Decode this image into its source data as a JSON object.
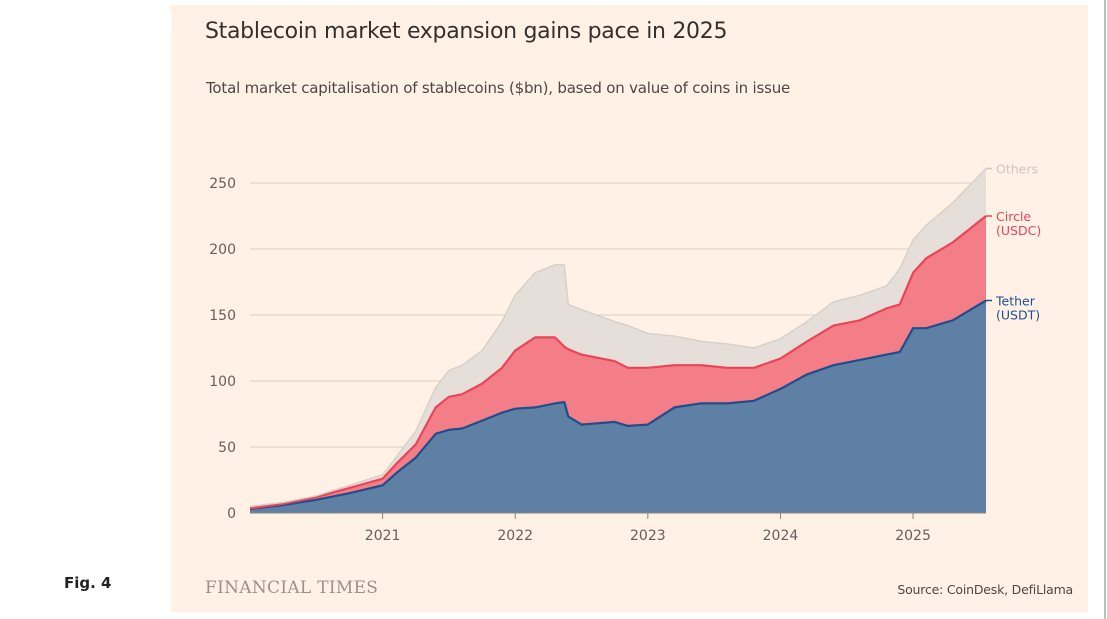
{
  "figure_label": "Fig. 4",
  "chart_data": {
    "type": "area",
    "stacked": true,
    "title": "Stablecoin market expansion gains pace in 2025",
    "subtitle": "Total market capitalisation of stablecoins ($bn), based on value of coins in issue",
    "xlabel": "",
    "ylabel": "",
    "ylim": [
      0,
      260
    ],
    "yticks": [
      0,
      50,
      100,
      150,
      200,
      250
    ],
    "xlim": [
      2020.0,
      2025.55
    ],
    "xticks": [
      2021,
      2022,
      2023,
      2024,
      2025
    ],
    "xtick_labels": [
      "2021",
      "2022",
      "2023",
      "2024",
      "2025"
    ],
    "grid": true,
    "legend": "right (direct labels)",
    "x": [
      2020.0,
      2020.25,
      2020.5,
      2020.75,
      2021.0,
      2021.1,
      2021.25,
      2021.4,
      2021.5,
      2021.6,
      2021.75,
      2021.9,
      2022.0,
      2022.15,
      2022.3,
      2022.37,
      2022.4,
      2022.5,
      2022.75,
      2022.85,
      2023.0,
      2023.2,
      2023.4,
      2023.6,
      2023.8,
      2024.0,
      2024.2,
      2024.4,
      2024.6,
      2024.8,
      2024.9,
      2025.0,
      2025.1,
      2025.3,
      2025.55
    ],
    "series": [
      {
        "name": "Tether (USDT)",
        "label_lines": [
          "Tether",
          "(USDT)"
        ],
        "color": "#1F4E8C",
        "fill": "#5E80A5",
        "values": [
          3,
          6,
          10,
          15,
          21,
          30,
          42,
          60,
          63,
          64,
          70,
          76,
          79,
          80,
          83,
          84,
          73,
          67,
          69,
          66,
          67,
          80,
          83,
          83,
          85,
          94,
          105,
          112,
          116,
          120,
          122,
          140,
          140,
          146,
          161
        ]
      },
      {
        "name": "Circle (USDC)",
        "label_lines": [
          "Circle",
          "(USDC)"
        ],
        "color": "#EB4457",
        "fill": "#F47E87",
        "values": [
          0.5,
          1,
          2,
          4,
          5,
          7,
          10,
          20,
          25,
          26,
          28,
          34,
          44,
          53,
          50,
          42,
          51,
          53,
          46,
          44,
          43,
          32,
          29,
          27,
          25,
          23,
          25,
          30,
          30,
          35,
          36,
          42,
          53,
          59,
          64
        ]
      },
      {
        "name": "Others",
        "label_lines": [
          "Others"
        ],
        "color": "#D8D0C9",
        "fill": "#E6DFD9",
        "values": [
          1.5,
          1,
          1,
          2,
          3,
          5,
          10,
          15,
          20,
          22,
          25,
          35,
          42,
          49,
          55,
          62,
          34,
          34,
          30,
          32,
          26,
          22,
          18,
          18,
          15,
          15,
          15,
          18,
          19,
          17,
          27,
          25,
          25,
          30,
          36
        ]
      }
    ]
  },
  "footer": {
    "brand": "FINANCIAL TIMES",
    "source": "Source: CoinDesk, DefiLlama"
  }
}
